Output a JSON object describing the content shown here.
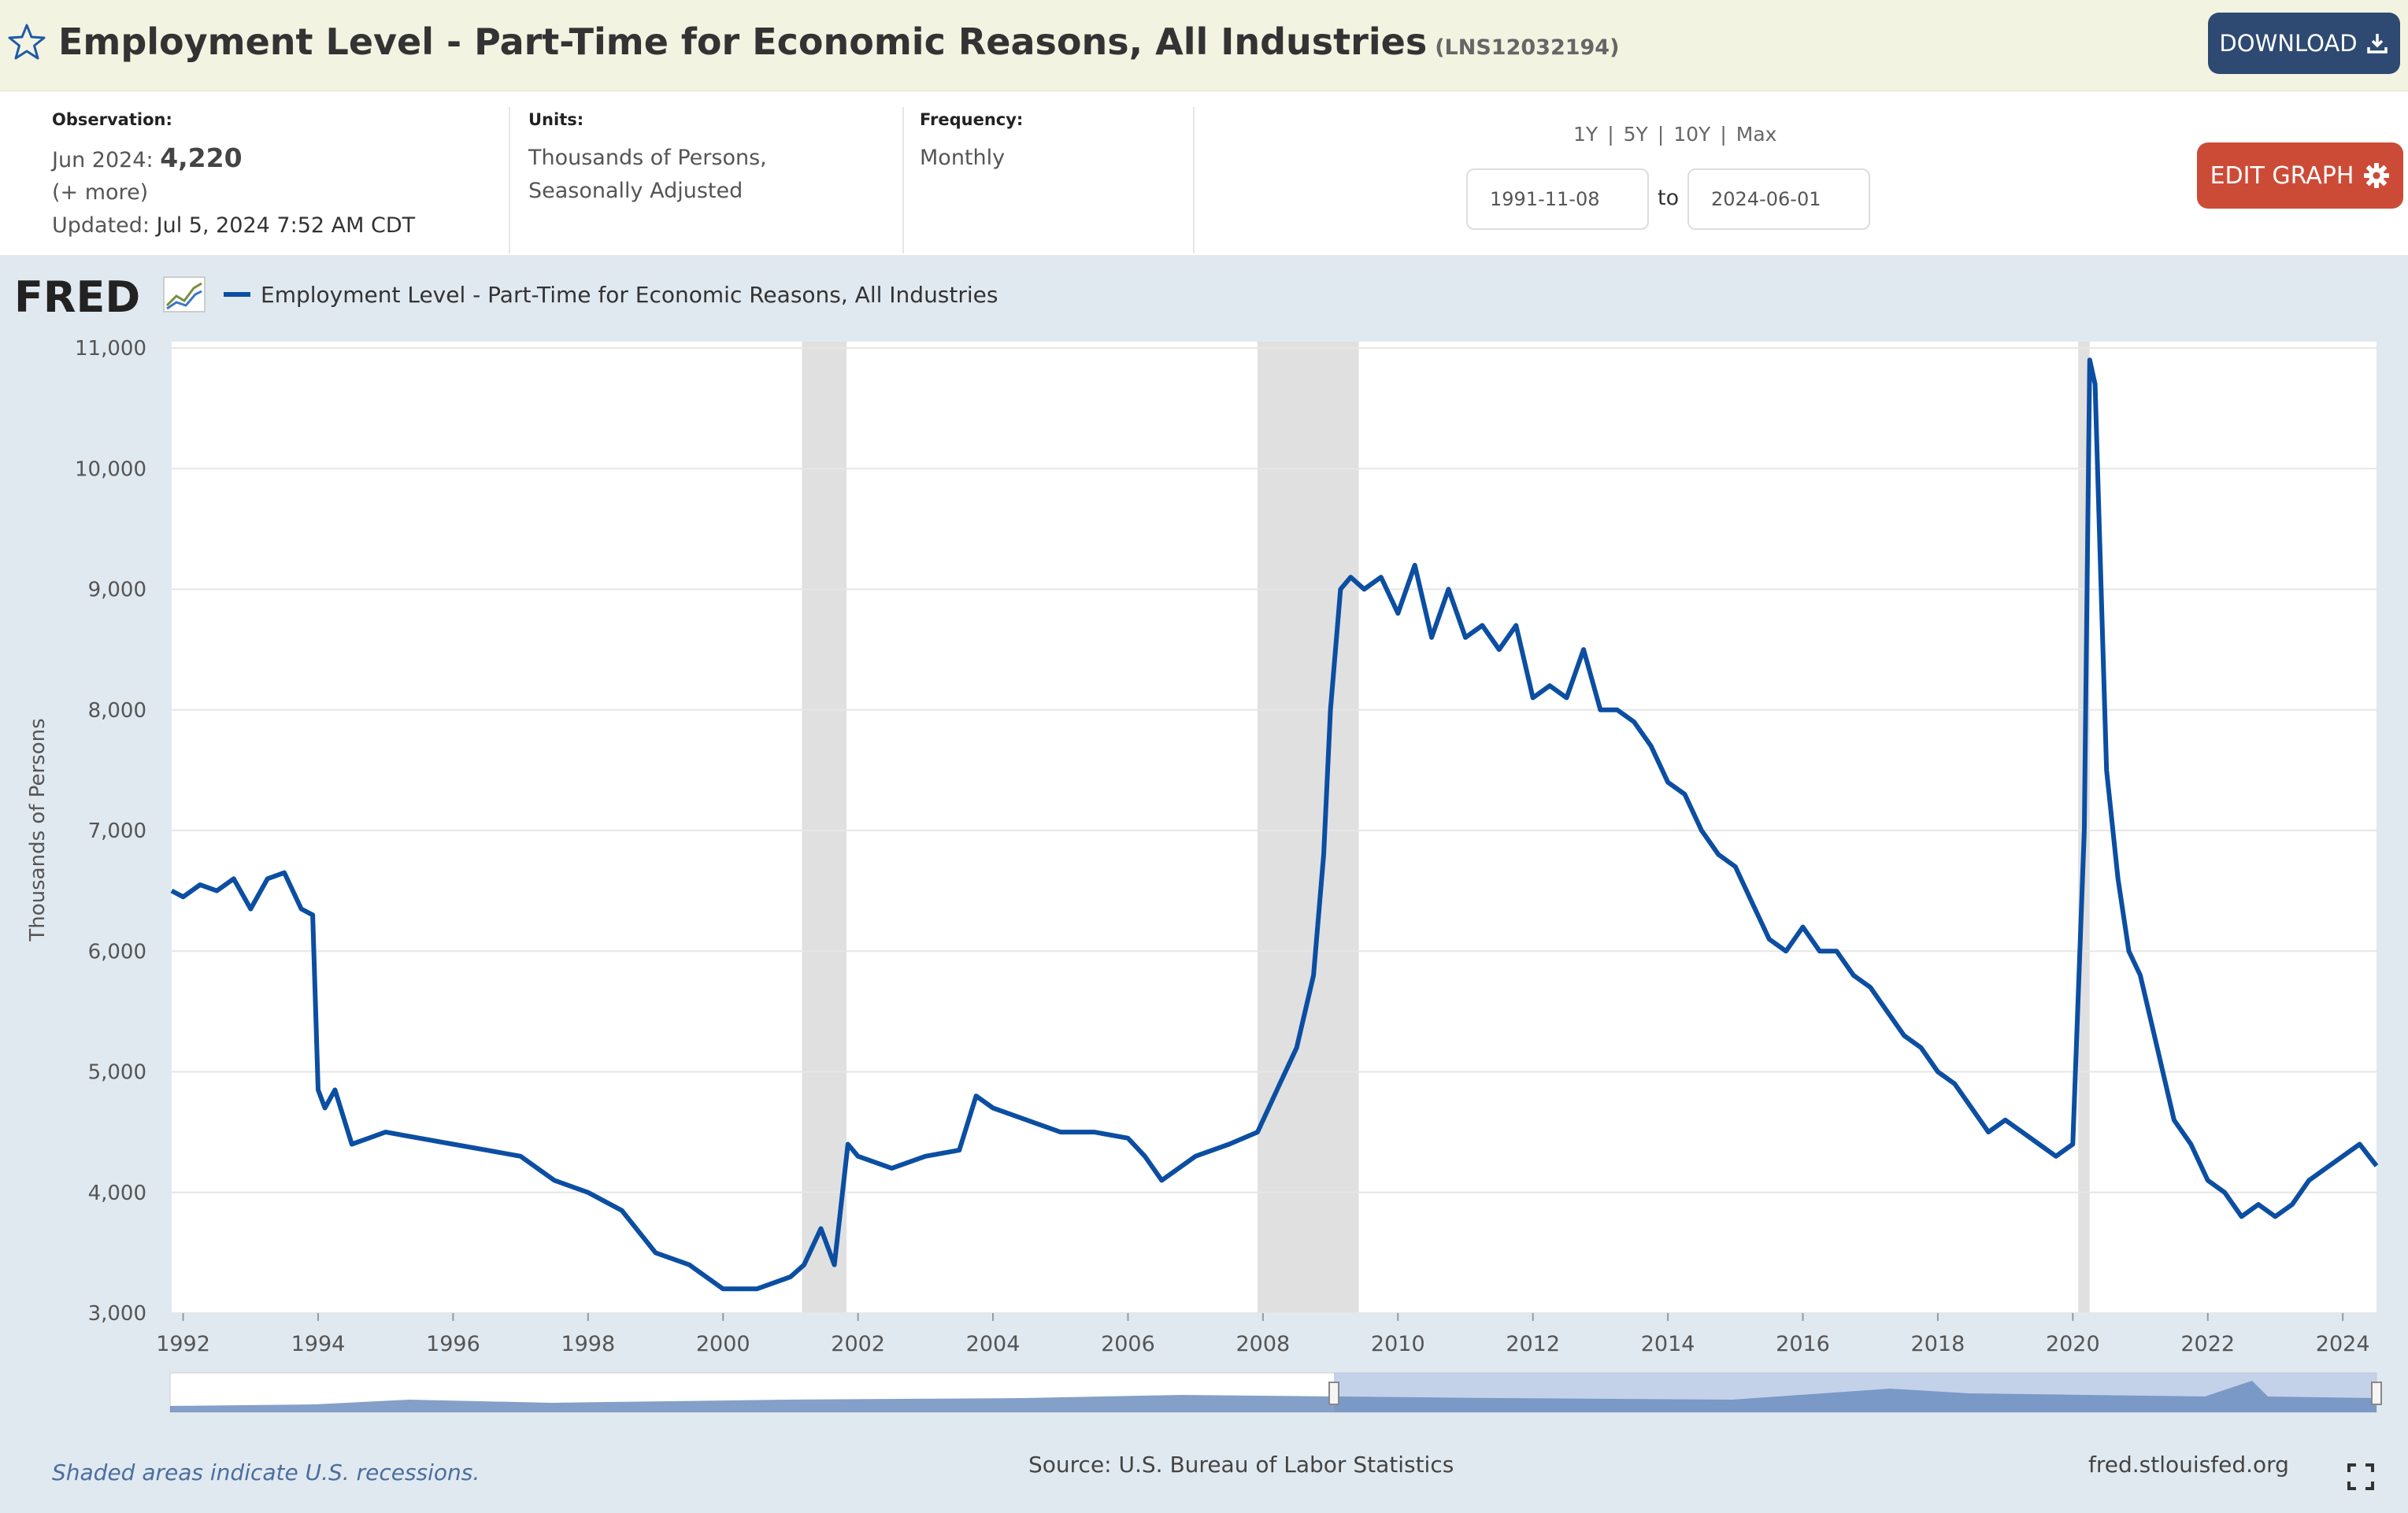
{
  "header": {
    "title": "Employment Level - Part-Time for Economic Reasons, All Industries",
    "series_id": "(LNS12032194)",
    "download_label": "DOWNLOAD"
  },
  "meta": {
    "observation_label": "Observation:",
    "observation_date": "Jun 2024:",
    "observation_value": "4,220",
    "more": "(+ more)",
    "updated_label": "Updated:",
    "updated_value": "Jul 5, 2024 7:52 AM CDT",
    "units_label": "Units:",
    "units_line1": "Thousands of Persons,",
    "units_line2": "Seasonally Adjusted",
    "frequency_label": "Frequency:",
    "frequency_value": "Monthly",
    "range_1y": "1Y",
    "range_5y": "5Y",
    "range_10y": "10Y",
    "range_max": "Max",
    "range_sep": "|",
    "date_from": "1991-11-08",
    "date_to": "2024-06-01",
    "to_label": "to",
    "edit_label": "EDIT GRAPH"
  },
  "chart": {
    "logo_text": "FRED",
    "footer_note": "Shaded areas indicate U.S. recessions.",
    "source": "Source: U.S. Bureau of Labor Statistics",
    "site": "fred.stlouisfed.org",
    "colors": {
      "line": "#0b4ea2",
      "recession": "#e0e0e0",
      "grid": "#e6e6e6",
      "background": "#e1e9f0"
    }
  },
  "chart_data": {
    "type": "line",
    "legend": "Employment Level - Part-Time for Economic Reasons, All Industries",
    "ylabel": "Thousands of Persons",
    "xlim": [
      1991.83,
      2024.5
    ],
    "ylim": [
      3000,
      11000
    ],
    "yticks": [
      3000,
      4000,
      5000,
      6000,
      7000,
      8000,
      9000,
      10000,
      11000
    ],
    "ytick_labels": [
      "3,000",
      "4,000",
      "5,000",
      "6,000",
      "7,000",
      "8,000",
      "9,000",
      "10,000",
      "11,000"
    ],
    "xticks": [
      1992,
      1994,
      1996,
      1998,
      2000,
      2002,
      2004,
      2006,
      2008,
      2010,
      2012,
      2014,
      2016,
      2018,
      2020,
      2022,
      2024
    ],
    "xtick_labels": [
      "1992",
      "1994",
      "1996",
      "1998",
      "2000",
      "2002",
      "2004",
      "2006",
      "2008",
      "2010",
      "2012",
      "2014",
      "2016",
      "2018",
      "2020",
      "2022",
      "2024"
    ],
    "grid": true,
    "recessions": [
      [
        2001.17,
        2001.83
      ],
      [
        2007.92,
        2009.42
      ],
      [
        2020.08,
        2020.25
      ]
    ],
    "series": [
      {
        "name": "Employment Level - Part-Time for Economic Reasons, All Industries",
        "x": [
          1991.83,
          1992.0,
          1992.25,
          1992.5,
          1992.75,
          1993.0,
          1993.25,
          1993.5,
          1993.75,
          1993.92,
          1994.0,
          1994.1,
          1994.25,
          1994.5,
          1994.75,
          1995.0,
          1995.5,
          1996.0,
          1996.5,
          1997.0,
          1997.5,
          1998.0,
          1998.5,
          1999.0,
          1999.5,
          2000.0,
          2000.5,
          2001.0,
          2001.2,
          2001.45,
          2001.65,
          2001.85,
          2002.0,
          2002.5,
          2003.0,
          2003.5,
          2003.75,
          2004.0,
          2004.5,
          2005.0,
          2005.5,
          2006.0,
          2006.25,
          2006.5,
          2007.0,
          2007.5,
          2007.92,
          2008.25,
          2008.5,
          2008.75,
          2008.9,
          2009.0,
          2009.15,
          2009.3,
          2009.5,
          2009.75,
          2010.0,
          2010.25,
          2010.5,
          2010.75,
          2011.0,
          2011.25,
          2011.5,
          2011.75,
          2012.0,
          2012.25,
          2012.5,
          2012.75,
          2013.0,
          2013.25,
          2013.5,
          2013.75,
          2014.0,
          2014.25,
          2014.5,
          2014.75,
          2015.0,
          2015.25,
          2015.5,
          2015.75,
          2016.0,
          2016.25,
          2016.5,
          2016.75,
          2017.0,
          2017.25,
          2017.5,
          2017.75,
          2018.0,
          2018.25,
          2018.5,
          2018.75,
          2019.0,
          2019.25,
          2019.5,
          2019.75,
          2020.0,
          2020.17,
          2020.25,
          2020.33,
          2020.42,
          2020.5,
          2020.67,
          2020.83,
          2021.0,
          2021.25,
          2021.5,
          2021.75,
          2022.0,
          2022.25,
          2022.5,
          2022.75,
          2023.0,
          2023.25,
          2023.5,
          2023.75,
          2024.0,
          2024.25,
          2024.5
        ],
        "values": [
          6500,
          6450,
          6550,
          6500,
          6600,
          6350,
          6600,
          6650,
          6350,
          6300,
          4850,
          4700,
          4850,
          4400,
          4450,
          4500,
          4450,
          4400,
          4350,
          4300,
          4100,
          4000,
          3850,
          3500,
          3400,
          3200,
          3200,
          3300,
          3400,
          3700,
          3400,
          4400,
          4300,
          4200,
          4300,
          4350,
          4800,
          4700,
          4600,
          4500,
          4500,
          4450,
          4300,
          4100,
          4300,
          4400,
          4500,
          4900,
          5200,
          5800,
          6800,
          8000,
          9000,
          9100,
          9000,
          9100,
          8800,
          9200,
          8600,
          9000,
          8600,
          8700,
          8500,
          8700,
          8100,
          8200,
          8100,
          8500,
          8000,
          8000,
          7900,
          7700,
          7400,
          7300,
          7000,
          6800,
          6700,
          6400,
          6100,
          6000,
          6200,
          6000,
          6000,
          5800,
          5700,
          5500,
          5300,
          5200,
          5000,
          4900,
          4700,
          4500,
          4600,
          4500,
          4400,
          4300,
          4400,
          7000,
          10900,
          10700,
          9000,
          7500,
          6600,
          6000,
          5800,
          5200,
          4600,
          4400,
          4100,
          4000,
          3800,
          3900,
          3800,
          3900,
          4100,
          4200,
          4300,
          4400,
          4220
        ]
      }
    ]
  }
}
